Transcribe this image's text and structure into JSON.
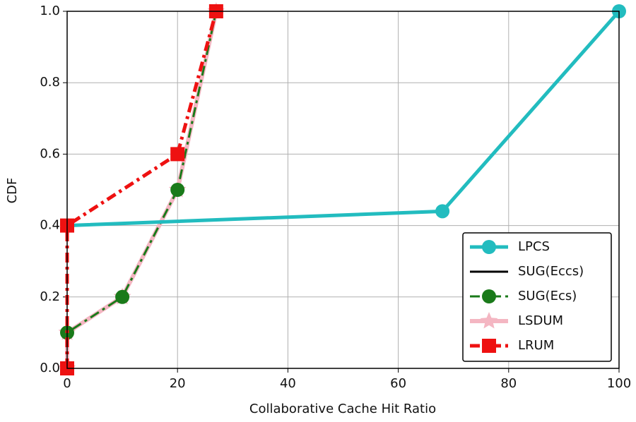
{
  "chart_data": {
    "type": "line",
    "xlabel": "Collaborative Cache Hit Ratio",
    "ylabel": "CDF",
    "xlim": [
      0,
      100
    ],
    "xticks": [
      0,
      20,
      40,
      60,
      80,
      100
    ],
    "ylim": [
      0,
      1
    ],
    "yticks": [
      {
        "value": 0,
        "label": "0.0"
      },
      0.2,
      0.4,
      0.6,
      0.8,
      {
        "value": 1,
        "label": "1.0"
      }
    ],
    "grid": true,
    "legend": "lower right",
    "series": [
      {
        "name": "LPCS",
        "color": "#22bcbf",
        "marker": "circle",
        "linestyle": "solid",
        "x": [
          0,
          68,
          100
        ],
        "values": [
          0.4,
          0.44,
          1.0
        ]
      },
      {
        "name": "SUG(Eccs)",
        "color": "#000000",
        "marker": "none",
        "linestyle": "solid",
        "x": [
          0,
          0,
          10,
          20,
          27
        ],
        "values": [
          0,
          0.1,
          0.2,
          0.5,
          1.0
        ]
      },
      {
        "name": "SUG(Ecs)",
        "color": "#1a7a1a",
        "marker": "circle",
        "linestyle": "dashdot",
        "x": [
          0,
          0,
          10,
          20,
          27
        ],
        "values": [
          0,
          0.1,
          0.2,
          0.5,
          1.0
        ]
      },
      {
        "name": "LSDUM",
        "color": "#f4b6c2",
        "marker": "star",
        "linestyle": "solid",
        "x": [
          0,
          0,
          10,
          20,
          27
        ],
        "values": [
          0,
          0.1,
          0.2,
          0.5,
          1.0
        ]
      },
      {
        "name": "LRUM",
        "color": "#ee1111",
        "marker": "square",
        "linestyle": "dashdot",
        "x": [
          0,
          0,
          20,
          27
        ],
        "values": [
          0,
          0.4,
          0.6,
          1.0
        ]
      }
    ]
  }
}
